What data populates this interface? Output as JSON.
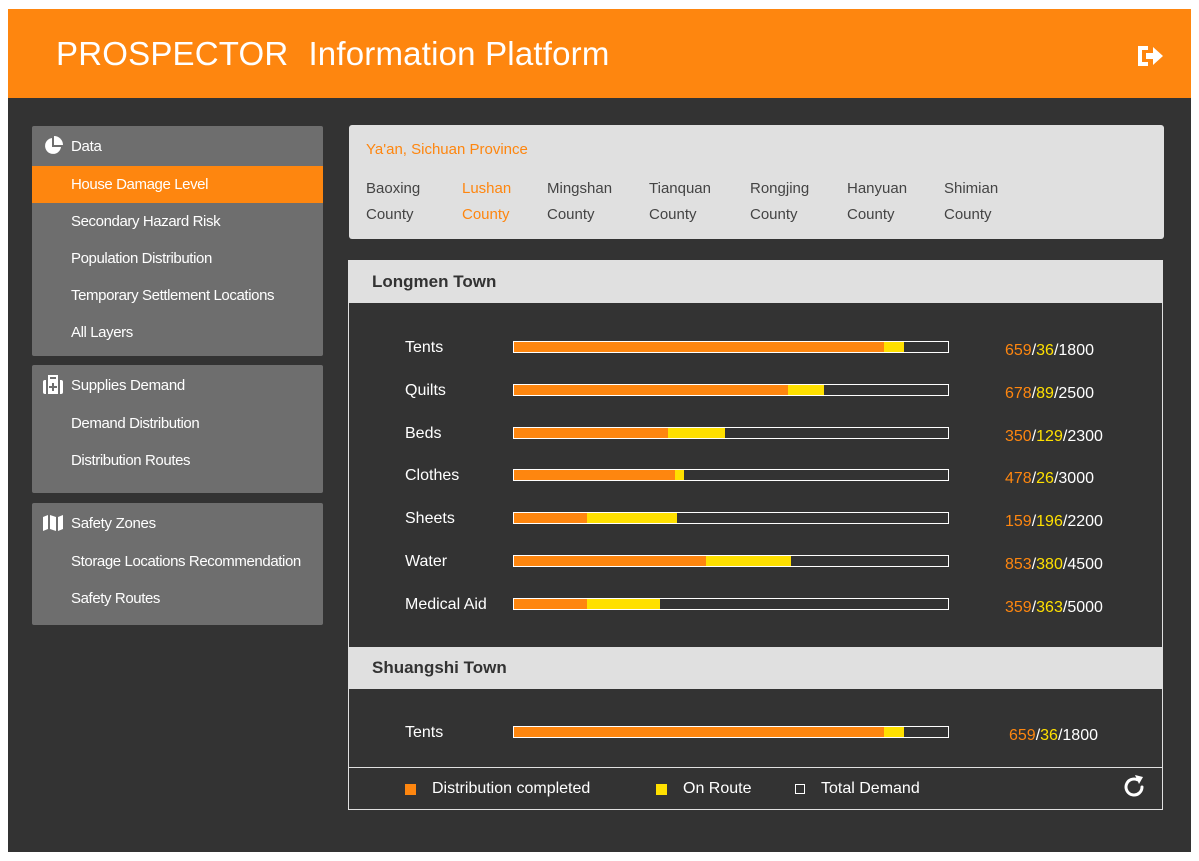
{
  "header": {
    "brand": "PROSPECTOR",
    "subtitle": "Information Platform",
    "logout_icon": "logout-icon"
  },
  "sidebar": {
    "sections": [
      {
        "title": "Data",
        "icon": "pie-chart-icon",
        "items": [
          {
            "label": "House Damage Level",
            "active": true
          },
          {
            "label": "Secondary Hazard Risk",
            "active": false
          },
          {
            "label": "Population Distribution",
            "active": false
          },
          {
            "label": "Temporary Settlement Locations",
            "active": false
          },
          {
            "label": "All Layers",
            "active": false
          }
        ]
      },
      {
        "title": "Supplies Demand",
        "icon": "medical-kit-icon",
        "items": [
          {
            "label": "Demand Distribution",
            "active": false
          },
          {
            "label": "Distribution Routes",
            "active": false
          }
        ]
      },
      {
        "title": "Safety Zones",
        "icon": "map-icon",
        "items": [
          {
            "label": "Storage Locations Recommendation",
            "active": false
          },
          {
            "label": "Safety Routes",
            "active": false
          }
        ]
      }
    ]
  },
  "region": {
    "title": "Ya'an, Sichuan Province",
    "counties": [
      {
        "line1": "Baoxing",
        "line2": "County",
        "active": false
      },
      {
        "line1": "Lushan",
        "line2": "County",
        "active": true
      },
      {
        "line1": "Mingshan",
        "line2": "County",
        "active": false
      },
      {
        "line1": "Tianquan",
        "line2": "County",
        "active": false
      },
      {
        "line1": "Rongjing",
        "line2": "County",
        "active": false
      },
      {
        "line1": "Hanyuan",
        "line2": "County",
        "active": false
      },
      {
        "line1": "Shimian",
        "line2": "County",
        "active": false
      }
    ]
  },
  "towns": [
    {
      "name": "Longmen Town",
      "supplies": [
        {
          "item": "Tents",
          "completed": 659,
          "on_route": 36,
          "total": 1800
        },
        {
          "item": "Quilts",
          "completed": 678,
          "on_route": 89,
          "total": 2500
        },
        {
          "item": "Beds",
          "completed": 350,
          "on_route": 129,
          "total": 2300
        },
        {
          "item": "Clothes",
          "completed": 478,
          "on_route": 26,
          "total": 3000
        },
        {
          "item": "Sheets",
          "completed": 159,
          "on_route": 196,
          "total": 2200
        },
        {
          "item": "Water",
          "completed": 853,
          "on_route": 380,
          "total": 4500
        },
        {
          "item": "Medical Aid",
          "completed": 359,
          "on_route": 363,
          "total": 5000
        }
      ]
    },
    {
      "name": "Shuangshi Town",
      "supplies": [
        {
          "item": "Tents",
          "completed": 659,
          "on_route": 36,
          "total": 1800
        }
      ]
    }
  ],
  "legend": {
    "completed": "Distribution completed",
    "on_route": "On Route",
    "total": "Total Demand",
    "refresh_icon": "refresh-icon"
  },
  "colors": {
    "accent": "#fe860f",
    "on_route": "#ffe000",
    "background": "#333333",
    "panel": "#6e6e6e",
    "light": "#e0e0e0"
  },
  "chart_data": [
    {
      "type": "bar",
      "title": "Longmen Town",
      "categories": [
        "Tents",
        "Quilts",
        "Beds",
        "Clothes",
        "Sheets",
        "Water",
        "Medical Aid"
      ],
      "series": [
        {
          "name": "Distribution completed",
          "values": [
            659,
            678,
            350,
            478,
            159,
            853,
            359
          ]
        },
        {
          "name": "On Route",
          "values": [
            36,
            89,
            129,
            26,
            196,
            380,
            363
          ]
        },
        {
          "name": "Total Demand",
          "values": [
            1800,
            2500,
            2300,
            3000,
            2200,
            4500,
            5000
          ]
        }
      ],
      "orientation": "horizontal",
      "stacked": true,
      "legend": "bottom"
    },
    {
      "type": "bar",
      "title": "Shuangshi Town",
      "categories": [
        "Tents"
      ],
      "series": [
        {
          "name": "Distribution completed",
          "values": [
            659
          ]
        },
        {
          "name": "On Route",
          "values": [
            36
          ]
        },
        {
          "name": "Total Demand",
          "values": [
            1800
          ]
        }
      ],
      "orientation": "horizontal",
      "stacked": true,
      "legend": "bottom"
    }
  ]
}
